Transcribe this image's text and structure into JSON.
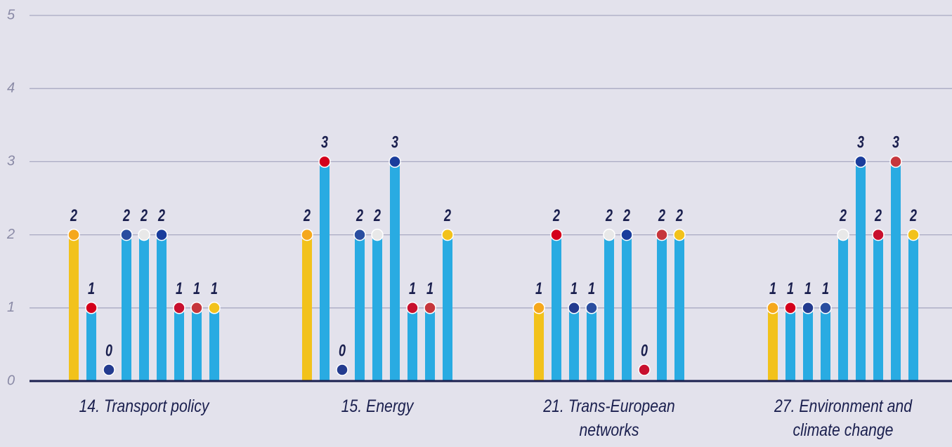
{
  "chart_data": {
    "type": "bar",
    "categories": [
      "14. Transport policy",
      "15. Energy",
      "21. Trans-European networks",
      "27. Environment and climate change"
    ],
    "series": [
      {
        "color": "#f2c21b",
        "values": [
          2,
          2,
          1,
          1
        ]
      },
      {
        "color": "#29abe2",
        "values": [
          1,
          3,
          2,
          1
        ]
      },
      {
        "color": "#29abe2",
        "values": [
          0,
          0,
          1,
          1
        ]
      },
      {
        "color": "#29abe2",
        "values": [
          2,
          2,
          1,
          1
        ]
      },
      {
        "color": "#29abe2",
        "values": [
          2,
          2,
          2,
          2
        ]
      },
      {
        "color": "#29abe2",
        "values": [
          2,
          3,
          2,
          3
        ]
      },
      {
        "color": "#29abe2",
        "values": [
          1,
          1,
          0,
          2
        ]
      },
      {
        "color": "#29abe2",
        "values": [
          1,
          1,
          2,
          3
        ]
      },
      {
        "color": "#29abe2",
        "values": [
          1,
          2,
          2,
          2
        ]
      }
    ],
    "ylim": [
      0,
      5
    ],
    "yticks": [
      0,
      1,
      2,
      3,
      4,
      5
    ],
    "grid": true
  }
}
